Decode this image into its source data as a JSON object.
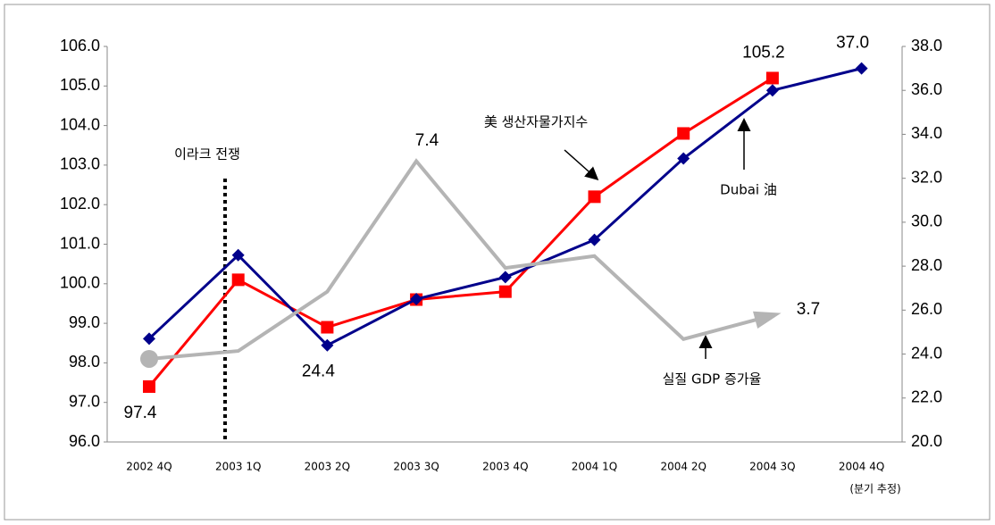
{
  "chart_data": {
    "type": "line",
    "categories": [
      "2002 4Q",
      "2003 1Q",
      "2003 2Q",
      "2003 3Q",
      "2003 4Q",
      "2004 1Q",
      "2004 2Q",
      "2004 3Q",
      "2004 4Q"
    ],
    "series": [
      {
        "name": "美 생산자물가지수",
        "color": "#ff0000",
        "marker": "square",
        "axis": "y",
        "values": [
          97.4,
          100.1,
          98.9,
          99.6,
          99.8,
          102.2,
          103.8,
          105.2,
          null
        ],
        "value_labels": [
          "97.4",
          null,
          null,
          null,
          null,
          null,
          null,
          "105.2",
          null
        ]
      },
      {
        "name": "Dubai 油",
        "color": "#00008b",
        "marker": "diamond",
        "axis": "y2",
        "values": [
          24.7,
          28.5,
          24.4,
          26.5,
          27.5,
          29.2,
          32.9,
          36.0,
          37.0
        ],
        "value_labels": [
          null,
          null,
          "24.4",
          null,
          null,
          null,
          null,
          null,
          "37.0"
        ]
      },
      {
        "name": "실질 GDP 증가율",
        "color": "#b4b4b4",
        "marker": "none",
        "axis": "y",
        "values": [
          98.1,
          98.3,
          99.8,
          103.1,
          100.4,
          100.7,
          98.6,
          99.2,
          null
        ]
      }
    ],
    "annotations": [
      "이라크 전쟁",
      "7.4",
      "3.7",
      "(분기 추정)"
    ],
    "ylim": [
      96,
      106
    ],
    "yticks": [
      {
        "value": 96,
        "label": "96.0"
      },
      {
        "value": 97,
        "label": "97.0"
      },
      {
        "value": 98,
        "label": "98.0"
      },
      {
        "value": 99,
        "label": "99.0"
      },
      {
        "value": 100,
        "label": "100.0"
      },
      {
        "value": 101,
        "label": "101.0"
      },
      {
        "value": 102,
        "label": "102.0"
      },
      {
        "value": 103,
        "label": "103.0"
      },
      {
        "value": 104,
        "label": "104.0"
      },
      {
        "value": 105,
        "label": "105.0"
      },
      {
        "value": 106,
        "label": "106.0"
      }
    ],
    "y2lim": [
      20,
      38
    ],
    "y2ticks": [
      {
        "value": 20,
        "label": "20.0"
      },
      {
        "value": 22,
        "label": "22.0"
      },
      {
        "value": 24,
        "label": "24.0"
      },
      {
        "value": 26,
        "label": "26.0"
      },
      {
        "value": 28,
        "label": "28.0"
      },
      {
        "value": 30,
        "label": "30.0"
      },
      {
        "value": 32,
        "label": "32.0"
      },
      {
        "value": 34,
        "label": "34.0"
      },
      {
        "value": 36,
        "label": "36.0"
      },
      {
        "value": 38,
        "label": "38.0"
      }
    ],
    "grid": false
  }
}
